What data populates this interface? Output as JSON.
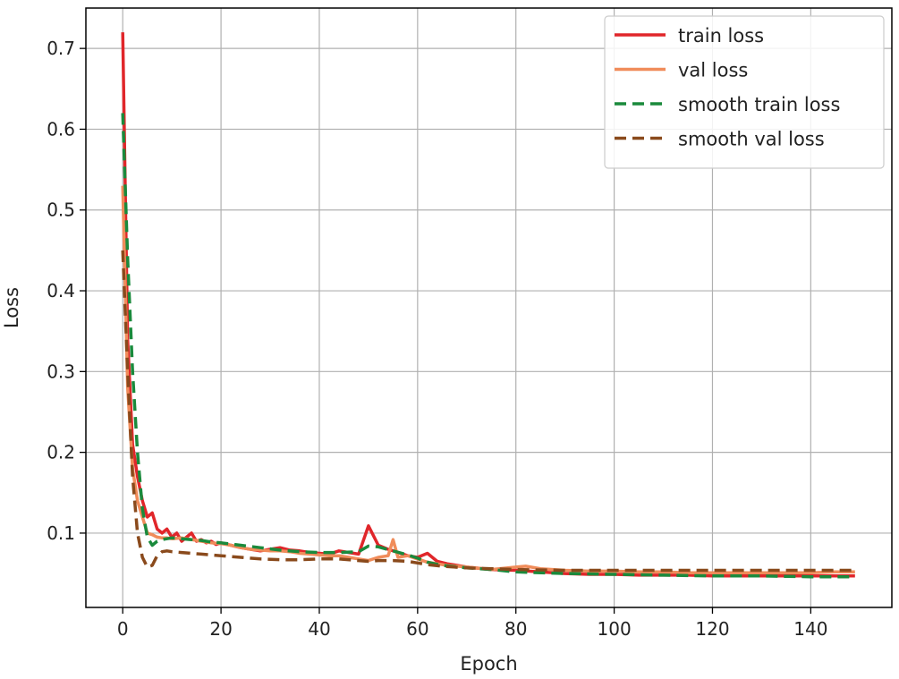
{
  "chart_data": {
    "type": "line",
    "xlabel": "Epoch",
    "ylabel": "Loss",
    "xlim": [
      -7.5,
      156.5
    ],
    "ylim": [
      0.008,
      0.75
    ],
    "xticks": [
      0,
      20,
      40,
      60,
      80,
      100,
      120,
      140
    ],
    "yticks": [
      0.1,
      0.2,
      0.3,
      0.4,
      0.5,
      0.6,
      0.7
    ],
    "grid": true,
    "legend_position": "top-right",
    "series": [
      {
        "name": "train loss",
        "color": "#e0262a",
        "dash": "solid",
        "x": [
          0,
          1,
          2,
          3,
          4,
          5,
          6,
          7,
          8,
          9,
          10,
          11,
          12,
          13,
          14,
          15,
          16,
          17,
          18,
          19,
          20,
          22,
          24,
          26,
          28,
          30,
          32,
          34,
          36,
          38,
          40,
          42,
          44,
          46,
          48,
          50,
          52,
          54,
          56,
          58,
          60,
          62,
          64,
          66,
          68,
          70,
          75,
          80,
          85,
          90,
          95,
          100,
          105,
          110,
          115,
          120,
          125,
          130,
          135,
          140,
          145,
          149
        ],
        "y": [
          0.72,
          0.34,
          0.21,
          0.17,
          0.14,
          0.12,
          0.125,
          0.105,
          0.1,
          0.105,
          0.095,
          0.1,
          0.09,
          0.095,
          0.1,
          0.09,
          0.092,
          0.088,
          0.09,
          0.086,
          0.088,
          0.085,
          0.082,
          0.08,
          0.078,
          0.08,
          0.082,
          0.079,
          0.078,
          0.076,
          0.075,
          0.074,
          0.078,
          0.076,
          0.074,
          0.109,
          0.085,
          0.08,
          0.076,
          0.072,
          0.07,
          0.075,
          0.065,
          0.062,
          0.06,
          0.058,
          0.055,
          0.054,
          0.052,
          0.05,
          0.049,
          0.049,
          0.048,
          0.048,
          0.048,
          0.047,
          0.047,
          0.047,
          0.047,
          0.047,
          0.047,
          0.047
        ]
      },
      {
        "name": "val loss",
        "color": "#f08c5a",
        "dash": "solid",
        "x": [
          0,
          1,
          2,
          3,
          4,
          5,
          6,
          7,
          8,
          9,
          10,
          12,
          14,
          16,
          18,
          20,
          22,
          24,
          26,
          28,
          30,
          32,
          34,
          36,
          38,
          40,
          42,
          44,
          46,
          48,
          50,
          52,
          54,
          55,
          56,
          58,
          60,
          62,
          64,
          66,
          68,
          70,
          75,
          80,
          82,
          85,
          90,
          95,
          100,
          105,
          110,
          115,
          120,
          125,
          130,
          135,
          140,
          145,
          149
        ],
        "y": [
          0.53,
          0.28,
          0.18,
          0.14,
          0.12,
          0.1,
          0.098,
          0.095,
          0.094,
          0.094,
          0.093,
          0.094,
          0.092,
          0.09,
          0.088,
          0.087,
          0.085,
          0.082,
          0.08,
          0.079,
          0.078,
          0.078,
          0.077,
          0.075,
          0.074,
          0.073,
          0.072,
          0.072,
          0.07,
          0.068,
          0.066,
          0.07,
          0.072,
          0.092,
          0.07,
          0.072,
          0.068,
          0.064,
          0.062,
          0.06,
          0.059,
          0.058,
          0.055,
          0.058,
          0.059,
          0.056,
          0.054,
          0.053,
          0.053,
          0.052,
          0.052,
          0.051,
          0.051,
          0.051,
          0.051,
          0.051,
          0.051,
          0.052,
          0.052
        ]
      },
      {
        "name": "smooth train loss",
        "color": "#1a8a3c",
        "dash": "dashed",
        "x": [
          0,
          1,
          2,
          3,
          4,
          5,
          6,
          7,
          8,
          9,
          10,
          12,
          14,
          16,
          18,
          20,
          24,
          28,
          32,
          36,
          40,
          44,
          48,
          50,
          52,
          55,
          58,
          60,
          62,
          65,
          70,
          75,
          80,
          90,
          100,
          110,
          120,
          130,
          140,
          149
        ],
        "y": [
          0.62,
          0.44,
          0.3,
          0.2,
          0.13,
          0.095,
          0.085,
          0.09,
          0.092,
          0.093,
          0.094,
          0.093,
          0.092,
          0.091,
          0.089,
          0.088,
          0.085,
          0.082,
          0.079,
          0.077,
          0.076,
          0.076,
          0.077,
          0.084,
          0.083,
          0.078,
          0.073,
          0.069,
          0.064,
          0.06,
          0.057,
          0.055,
          0.052,
          0.05,
          0.049,
          0.048,
          0.047,
          0.047,
          0.046,
          0.046
        ]
      },
      {
        "name": "smooth val loss",
        "color": "#8a4a1c",
        "dash": "dashed",
        "x": [
          0,
          1,
          2,
          3,
          4,
          5,
          6,
          7,
          8,
          9,
          10,
          12,
          14,
          16,
          18,
          20,
          24,
          28,
          32,
          36,
          40,
          44,
          48,
          50,
          52,
          55,
          58,
          60,
          62,
          65,
          70,
          75,
          80,
          90,
          100,
          110,
          120,
          130,
          140,
          149
        ],
        "y": [
          0.45,
          0.3,
          0.17,
          0.1,
          0.07,
          0.058,
          0.06,
          0.072,
          0.077,
          0.078,
          0.077,
          0.076,
          0.075,
          0.074,
          0.073,
          0.072,
          0.07,
          0.068,
          0.067,
          0.067,
          0.068,
          0.068,
          0.066,
          0.065,
          0.066,
          0.066,
          0.065,
          0.063,
          0.061,
          0.059,
          0.057,
          0.056,
          0.055,
          0.054,
          0.054,
          0.054,
          0.054,
          0.054,
          0.054,
          0.054
        ]
      }
    ]
  }
}
